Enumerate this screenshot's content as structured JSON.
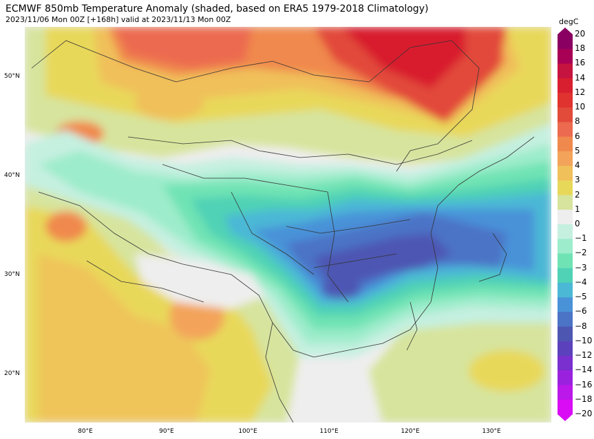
{
  "header": {
    "title": "ECMWF 850mb Temperature Anomaly (shaded, based on ERA5 1979-2018 Climatology)",
    "subtitle": "2023/11/06 Mon 00Z [+168h] valid at 2023/11/13 Mon 00Z"
  },
  "map": {
    "lat_labels": [
      "50°N",
      "40°N",
      "30°N",
      "20°N"
    ],
    "lat_values": [
      50,
      40,
      30,
      20
    ],
    "lon_labels": [
      "80°E",
      "90°E",
      "100°E",
      "110°E",
      "120°E",
      "130°E"
    ],
    "lon_values": [
      80,
      90,
      100,
      110,
      120,
      130
    ],
    "lon_range": [
      72.5,
      137
    ],
    "lat_range": [
      15,
      54.5
    ]
  },
  "colorbar": {
    "unit": "degC",
    "labels": [
      "20",
      "18",
      "16",
      "14",
      "12",
      "10",
      "8",
      "6",
      "5",
      "4",
      "3",
      "2",
      "1",
      "0",
      "−1",
      "−2",
      "−3",
      "−4",
      "−5",
      "−6",
      "−8",
      "−10",
      "−12",
      "−14",
      "−16",
      "−18",
      "−20"
    ],
    "colors": [
      "#8a0062",
      "#a80055",
      "#c5143f",
      "#d81f2f",
      "#e0322f",
      "#e24a3a",
      "#ec6a4f",
      "#f0894e",
      "#f3a45a",
      "#f0c05a",
      "#e8d85a",
      "#d7e49d",
      "#eeeeee",
      "#c5f0e0",
      "#9deccb",
      "#6fe3b4",
      "#4fd2b5",
      "#4bb8d6",
      "#4a92d8",
      "#4b73c6",
      "#4d57b2",
      "#5b41bc",
      "#7a2fcf",
      "#9a22de",
      "#bb18ea",
      "#d90cf5"
    ],
    "colors_note": "band colors from top (warm) to bottom (cold)"
  },
  "legend_colors": {
    "land_neutral": "#eeeeee",
    "boundary": "#333333"
  }
}
